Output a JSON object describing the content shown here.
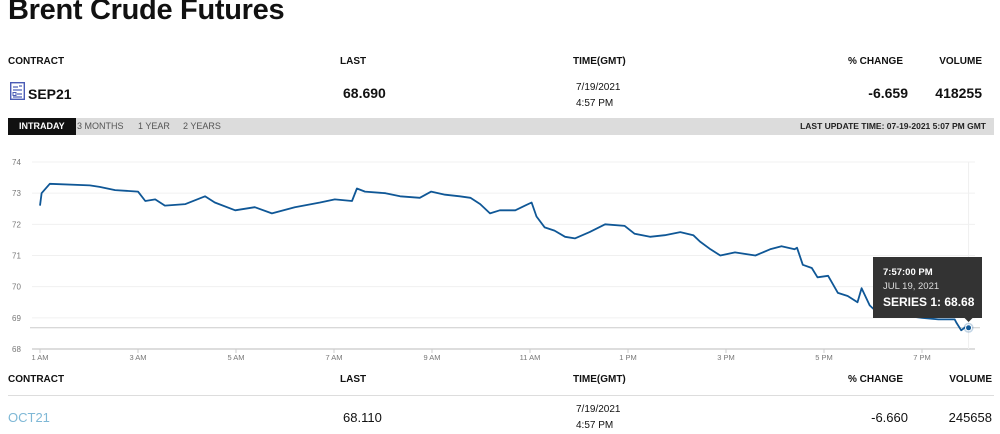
{
  "page": {
    "title": "Brent Crude Futures"
  },
  "columns": {
    "contract": "CONTRACT",
    "last": "LAST",
    "time": "TIME(GMT)",
    "change": "% CHANGE",
    "volume": "VOLUME"
  },
  "rows": [
    {
      "contract": "SEP21",
      "icon": "contract-sheet-icon",
      "last": "68.690",
      "date": "7/19/2021",
      "time": "4:57 PM",
      "change": "-6.659",
      "volume": "418255"
    },
    {
      "contract": "OCT21",
      "last": "68.110",
      "date": "7/19/2021",
      "time": "4:57 PM",
      "change": "-6.660",
      "volume": "245658",
      "link_color": "#7fb8d6"
    }
  ],
  "tabs": [
    {
      "label": "INTRADAY",
      "active": true
    },
    {
      "label": "3 MONTHS"
    },
    {
      "label": "1 YEAR"
    },
    {
      "label": "2 YEARS"
    }
  ],
  "last_update": "LAST UPDATE TIME: 07-19-2021 5:07 PM GMT",
  "tooltip": {
    "time": "7:57:00 PM",
    "date": "JUL 19, 2021",
    "series": "SERIES 1: 68.68"
  },
  "colors": {
    "line": "#0f5796",
    "tooltip_bg": "#333333",
    "tab_bar": "#dcdcdc"
  },
  "chart_data": {
    "type": "line",
    "ylim": [
      68,
      74
    ],
    "xlim": [
      "1:00",
      "19:57"
    ],
    "yticks": [
      "68",
      "69",
      "70",
      "71",
      "72",
      "73",
      "74"
    ],
    "xticks": [
      "1 AM",
      "3 AM",
      "5 AM",
      "7 AM",
      "9 AM",
      "11 AM",
      "1 PM",
      "3 PM",
      "5 PM",
      "7 PM"
    ],
    "grid": true,
    "crosshair_value": 68.68,
    "series": [
      {
        "x": [
          "1:00",
          "1:02",
          "1:12",
          "2:01",
          "2:13",
          "2:32",
          "3:00",
          "3:09",
          "3:21",
          "3:33",
          "3:58",
          "4:22",
          "4:34",
          "4:59",
          "5:23",
          "5:44",
          "6:12",
          "6:43",
          "7:01",
          "7:22",
          "7:28",
          "7:38",
          "8:03",
          "8:21",
          "8:45",
          "8:59",
          "9:16",
          "9:34",
          "9:47",
          "9:59",
          "10:11",
          "10:23",
          "10:42",
          "10:54",
          "11:02",
          "11:08",
          "11:18",
          "11:30",
          "11:43",
          "11:55",
          "12:13",
          "12:32",
          "12:56",
          "13:08",
          "13:27",
          "13:45",
          "14:04",
          "14:20",
          "14:28",
          "14:41",
          "14:53",
          "15:11",
          "15:36",
          "15:54",
          "16:08",
          "16:24",
          "16:27",
          "16:34",
          "16:45",
          "16:52",
          "17:05",
          "17:17",
          "17:29",
          "17:41",
          "17:46",
          "17:56",
          "18:02",
          "18:30",
          "19:00",
          "19:20",
          "19:40",
          "19:42",
          "19:48",
          "19:53",
          "19:57"
        ],
        "y": [
          72.6,
          73.0,
          73.3,
          73.25,
          73.2,
          73.1,
          73.05,
          72.75,
          72.8,
          72.6,
          72.65,
          72.9,
          72.7,
          72.45,
          72.55,
          72.35,
          72.55,
          72.7,
          72.8,
          72.75,
          73.15,
          73.05,
          73.0,
          72.9,
          72.85,
          73.05,
          72.95,
          72.9,
          72.85,
          72.65,
          72.35,
          72.45,
          72.45,
          72.6,
          72.7,
          72.25,
          71.9,
          71.8,
          71.6,
          71.55,
          71.75,
          72.0,
          71.95,
          71.7,
          71.6,
          71.65,
          71.75,
          71.65,
          71.45,
          71.2,
          71.0,
          71.1,
          71.0,
          71.2,
          71.3,
          71.2,
          71.25,
          70.7,
          70.6,
          70.3,
          70.35,
          69.8,
          69.7,
          69.5,
          69.95,
          69.4,
          69.25,
          69.1,
          69.0,
          68.95,
          68.95,
          68.85,
          68.6,
          68.7,
          68.68
        ]
      }
    ]
  }
}
